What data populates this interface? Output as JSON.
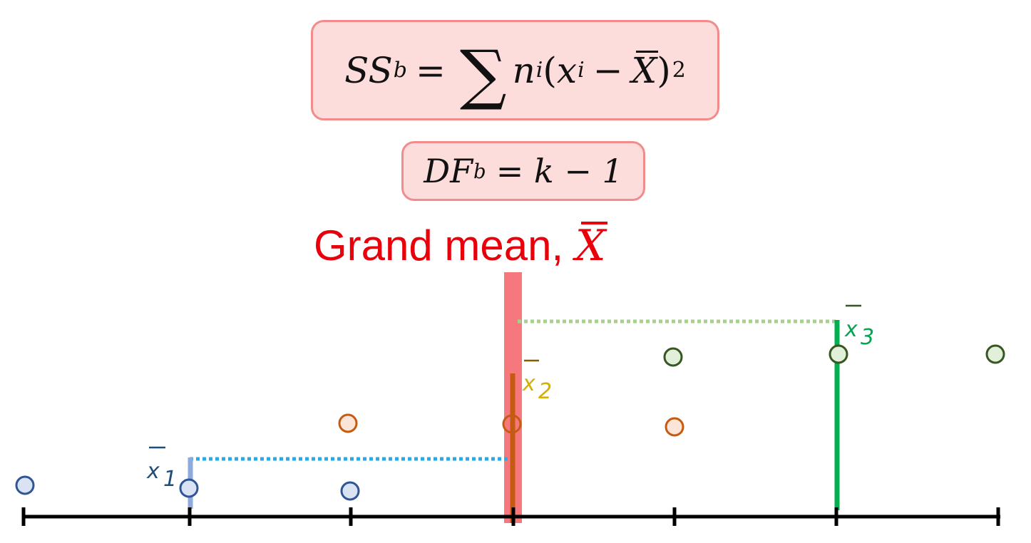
{
  "formulas": {
    "ss_lhs": "SS",
    "ss_lhs_sub": "b",
    "ss_eq": "=",
    "ss_n": "n",
    "ss_n_sub": "i",
    "ss_open": "(",
    "ss_x": "x",
    "ss_x_sub": "i",
    "ss_minus": "−",
    "ss_xbar": "X",
    "ss_close": ")",
    "ss_exp": "2",
    "df_lhs": "DF",
    "df_lhs_sub": "b",
    "df_rhs": "= k − 1"
  },
  "grand_mean": {
    "label": "Grand mean,",
    "symbol": "X"
  },
  "group_means": [
    {
      "label": "x",
      "sub": "1",
      "color": "#1f4e79"
    },
    {
      "label": "x",
      "sub": "2",
      "color": "#d4b000"
    },
    {
      "label": "x",
      "sub": "3",
      "color": "#00a650"
    }
  ],
  "colors": {
    "grand_mean_bar": "#f6787d",
    "group1_fill": "#dae3f3",
    "group1_stroke": "#2f5597",
    "group2_fill": "#fbe5d6",
    "group2_stroke": "#c55a11",
    "group3_fill": "#e2f0d9",
    "group3_stroke": "#375623",
    "group1_mean_line": "#8faadc",
    "group1_dotted": "#29abe2",
    "group2_mean_line": "#c55a11",
    "group3_mean_line": "#00b050",
    "group3_dotted": "#a9d18e",
    "axis": "#000000"
  }
}
